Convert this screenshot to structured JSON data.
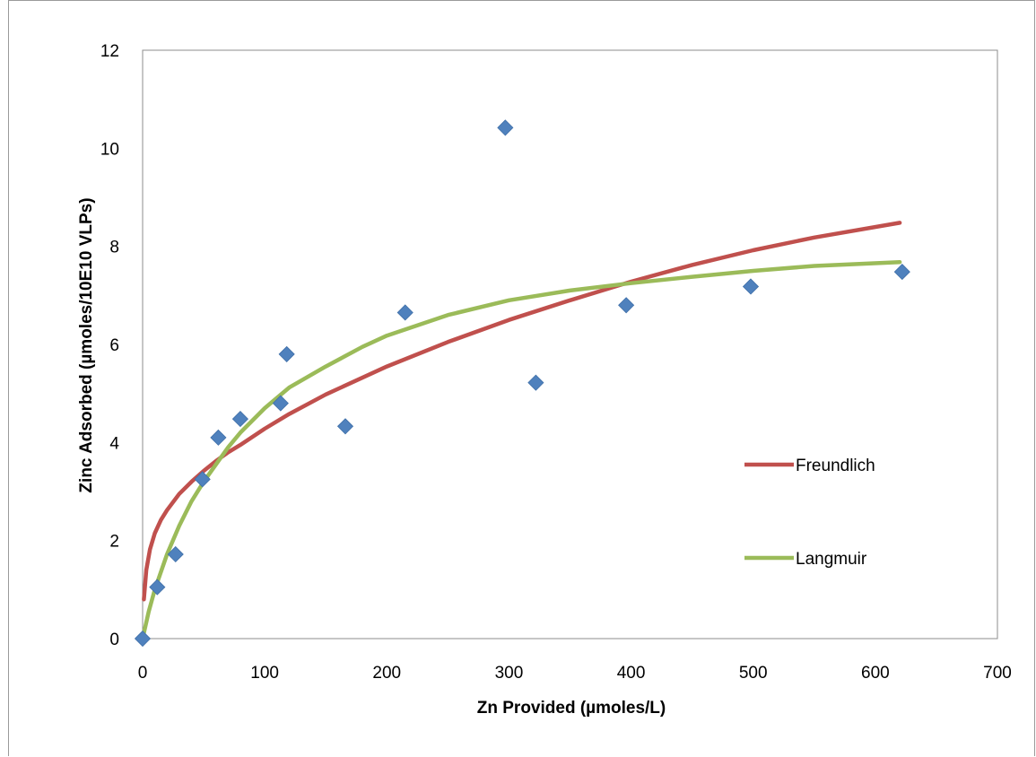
{
  "chart_data": {
    "type": "scatter",
    "xlabel": "Zn Provided (µmoles/L)",
    "ylabel": "Zinc Adsorbed (µmoles/10E10 VLPs)",
    "xlim": [
      0,
      700
    ],
    "ylim": [
      0,
      12
    ],
    "xticks": [
      "0",
      "100",
      "200",
      "300",
      "400",
      "500",
      "600",
      "700"
    ],
    "yticks": [
      "0",
      "2",
      "4",
      "6",
      "8",
      "10",
      "12"
    ],
    "grid": false,
    "legend_position": "right",
    "points": {
      "color": "#4f81bd",
      "marker": "diamond",
      "x": [
        0,
        12,
        27,
        49,
        62,
        80,
        113,
        118,
        166,
        215,
        297,
        322,
        396,
        498,
        622
      ],
      "y": [
        0.0,
        1.05,
        1.72,
        3.25,
        4.1,
        4.48,
        4.8,
        5.8,
        4.33,
        6.65,
        10.42,
        5.22,
        6.8,
        7.18,
        7.48
      ]
    },
    "series": [
      {
        "name": "Freundlich",
        "color": "#c0504d",
        "x": [
          1,
          3,
          6,
          10,
          15,
          20,
          30,
          40,
          50,
          60,
          70,
          80,
          100,
          120,
          150,
          200,
          250,
          300,
          350,
          400,
          450,
          500,
          550,
          620
        ],
        "y": [
          0.8,
          1.4,
          1.82,
          2.15,
          2.42,
          2.62,
          2.95,
          3.2,
          3.42,
          3.62,
          3.8,
          3.95,
          4.28,
          4.58,
          4.98,
          5.55,
          6.05,
          6.5,
          6.9,
          7.28,
          7.62,
          7.92,
          8.18,
          8.48
        ]
      },
      {
        "name": "Langmuir",
        "color": "#9bbb59",
        "x": [
          0,
          5,
          10,
          20,
          30,
          40,
          50,
          60,
          70,
          80,
          100,
          120,
          150,
          180,
          200,
          250,
          300,
          350,
          400,
          450,
          500,
          550,
          620
        ],
        "y": [
          0.0,
          0.55,
          1.0,
          1.72,
          2.3,
          2.8,
          3.2,
          3.55,
          3.9,
          4.2,
          4.7,
          5.12,
          5.55,
          5.95,
          6.18,
          6.6,
          6.9,
          7.1,
          7.25,
          7.38,
          7.5,
          7.6,
          7.68
        ]
      }
    ]
  }
}
